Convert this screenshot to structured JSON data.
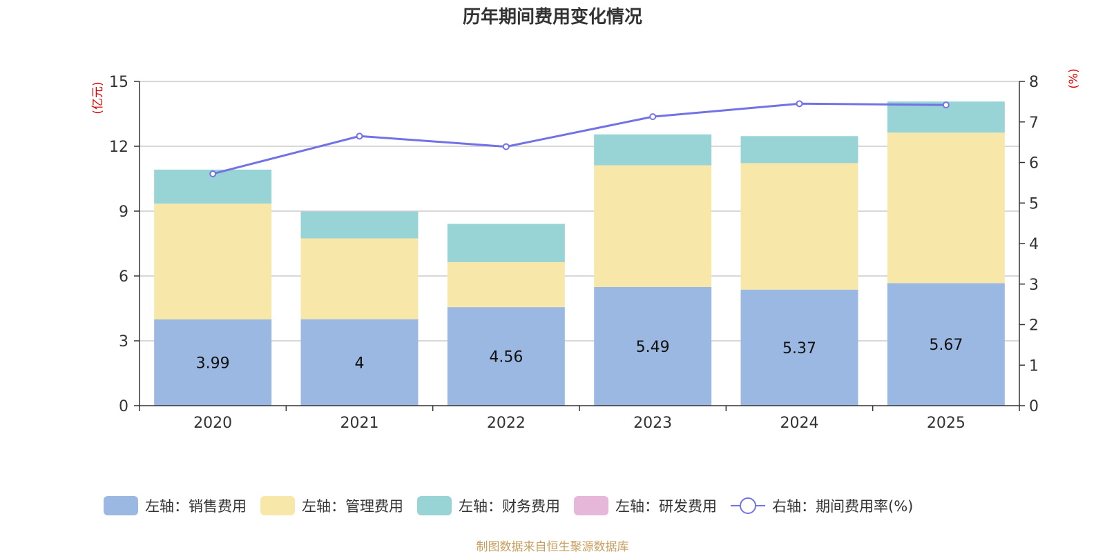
{
  "chart_data": {
    "type": "bar",
    "title": "历年期间费用变化情况",
    "categories": [
      "2020",
      "2021",
      "2022",
      "2023",
      "2024",
      "2025"
    ],
    "left_axis_unit": "(亿元)",
    "right_axis_unit": "(%)",
    "left_ylim": [
      0,
      15
    ],
    "left_ticks": [
      0,
      3,
      6,
      9,
      12,
      15
    ],
    "right_ylim": [
      0,
      8
    ],
    "right_ticks": [
      0,
      1,
      2,
      3,
      4,
      5,
      6,
      7,
      8
    ],
    "series": [
      {
        "name": "左轴：销售费用",
        "type": "bar",
        "stack": "total",
        "color": "#9bb8e2",
        "values": [
          3.99,
          4,
          4.56,
          5.49,
          5.37,
          5.67
        ],
        "show_labels": true
      },
      {
        "name": "左轴：管理费用",
        "type": "bar",
        "stack": "total",
        "color": "#f7e8aa",
        "values": [
          5.36,
          3.74,
          2.08,
          5.63,
          5.85,
          6.96
        ],
        "show_labels": false
      },
      {
        "name": "左轴：财务费用",
        "type": "bar",
        "stack": "total",
        "color": "#98d4d5",
        "values": [
          1.57,
          1.24,
          1.77,
          1.43,
          1.25,
          1.44
        ],
        "show_labels": false
      },
      {
        "name": "左轴：研发费用",
        "type": "bar",
        "stack": "total",
        "color": "#e7b7d9",
        "values": [
          0,
          0,
          0,
          0,
          0,
          0
        ],
        "show_labels": false
      },
      {
        "name": "右轴：期间费用率(%)",
        "type": "line",
        "axis": "right",
        "color": "#7272e6",
        "values": [
          5.72,
          6.65,
          6.39,
          7.13,
          7.45,
          7.42
        ]
      }
    ],
    "source": "制图数据来自恒生聚源数据库"
  }
}
